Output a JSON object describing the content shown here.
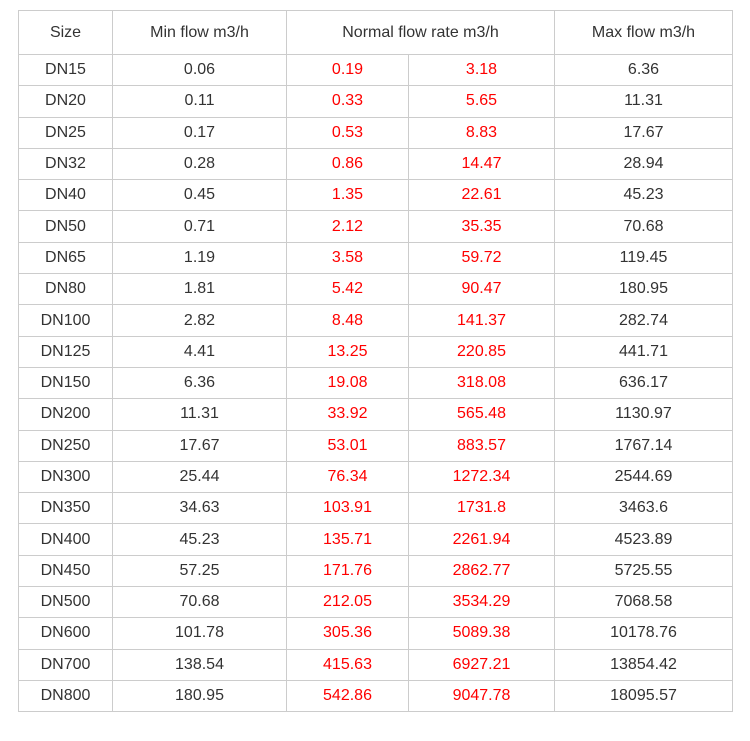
{
  "colors": {
    "body_text": "#333333",
    "border": "#cccccc",
    "normal_flow_text": "#ff0000",
    "background": "#ffffff"
  },
  "chart_data": {
    "type": "table",
    "title": "",
    "columns": [
      "Size",
      "Min flow m3/h",
      "Normal flow rate m3/h (low)",
      "Normal flow rate m3/h (high)",
      "Max flow m3/h"
    ],
    "header": {
      "size": "Size",
      "min": "Min flow m3/h",
      "normal": "Normal flow rate m3/h",
      "max": "Max flow m3/h"
    },
    "rows": [
      {
        "size": "DN15",
        "min": "0.06",
        "normal_low": "0.19",
        "normal_high": "3.18",
        "max": "6.36"
      },
      {
        "size": "DN20",
        "min": "0.11",
        "normal_low": "0.33",
        "normal_high": "5.65",
        "max": "11.31"
      },
      {
        "size": "DN25",
        "min": "0.17",
        "normal_low": "0.53",
        "normal_high": "8.83",
        "max": "17.67"
      },
      {
        "size": "DN32",
        "min": "0.28",
        "normal_low": "0.86",
        "normal_high": "14.47",
        "max": "28.94"
      },
      {
        "size": "DN40",
        "min": "0.45",
        "normal_low": "1.35",
        "normal_high": "22.61",
        "max": "45.23"
      },
      {
        "size": "DN50",
        "min": "0.71",
        "normal_low": "2.12",
        "normal_high": "35.35",
        "max": "70.68"
      },
      {
        "size": "DN65",
        "min": "1.19",
        "normal_low": "3.58",
        "normal_high": "59.72",
        "max": "119.45"
      },
      {
        "size": "DN80",
        "min": "1.81",
        "normal_low": "5.42",
        "normal_high": "90.47",
        "max": "180.95"
      },
      {
        "size": "DN100",
        "min": "2.82",
        "normal_low": "8.48",
        "normal_high": "141.37",
        "max": "282.74"
      },
      {
        "size": "DN125",
        "min": "4.41",
        "normal_low": "13.25",
        "normal_high": "220.85",
        "max": "441.71"
      },
      {
        "size": "DN150",
        "min": "6.36",
        "normal_low": "19.08",
        "normal_high": "318.08",
        "max": "636.17"
      },
      {
        "size": "DN200",
        "min": "11.31",
        "normal_low": "33.92",
        "normal_high": "565.48",
        "max": "1130.97"
      },
      {
        "size": "DN250",
        "min": "17.67",
        "normal_low": "53.01",
        "normal_high": "883.57",
        "max": "1767.14"
      },
      {
        "size": "DN300",
        "min": "25.44",
        "normal_low": "76.34",
        "normal_high": "1272.34",
        "max": "2544.69"
      },
      {
        "size": "DN350",
        "min": "34.63",
        "normal_low": "103.91",
        "normal_high": "1731.8",
        "max": "3463.6"
      },
      {
        "size": "DN400",
        "min": "45.23",
        "normal_low": "135.71",
        "normal_high": "2261.94",
        "max": "4523.89"
      },
      {
        "size": "DN450",
        "min": "57.25",
        "normal_low": "171.76",
        "normal_high": "2862.77",
        "max": "5725.55"
      },
      {
        "size": "DN500",
        "min": "70.68",
        "normal_low": "212.05",
        "normal_high": "3534.29",
        "max": "7068.58"
      },
      {
        "size": "DN600",
        "min": "101.78",
        "normal_low": "305.36",
        "normal_high": "5089.38",
        "max": "10178.76"
      },
      {
        "size": "DN700",
        "min": "138.54",
        "normal_low": "415.63",
        "normal_high": "6927.21",
        "max": "13854.42"
      },
      {
        "size": "DN800",
        "min": "180.95",
        "normal_low": "542.86",
        "normal_high": "9047.78",
        "max": "18095.57"
      }
    ]
  }
}
